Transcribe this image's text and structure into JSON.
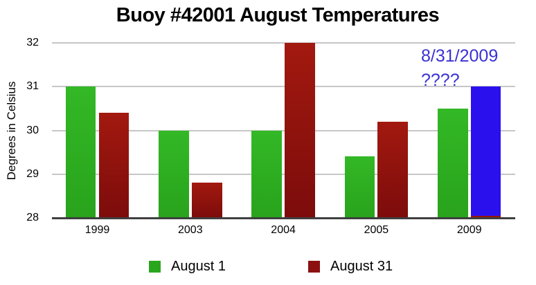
{
  "title": "Buoy #42001 August Temperatures",
  "y_axis_label": "Degrees in Celsius",
  "annotation": {
    "line1": "8/31/2009",
    "line2": "????"
  },
  "legend": {
    "items": [
      {
        "label": "August 1",
        "color": "#2aa61e"
      },
      {
        "label": "August 31",
        "color": "#8c1111"
      }
    ]
  },
  "colors": {
    "august1_bar": "#2eb022",
    "august31_bar_top": "#a2190f",
    "august31_bar_bottom": "#7c0c0b",
    "forecast_bar": "#2b10ee",
    "annotation_text": "#3a31d4",
    "gridline": "#c6c6c6",
    "axis_line": "#3f3f3f"
  },
  "chart_data": {
    "type": "bar",
    "title": "Buoy #42001 August Temperatures",
    "ylabel": "Degrees in Celsius",
    "ylim": [
      28,
      32
    ],
    "yticks": [
      28,
      29,
      30,
      31,
      32
    ],
    "grid": true,
    "legend_position": "bottom",
    "categories": [
      "1999",
      "2003",
      "2004",
      "2005",
      "2009"
    ],
    "series": [
      {
        "name": "August 1",
        "color": "#2eb022",
        "values": [
          31.0,
          30.0,
          30.0,
          29.4,
          30.5
        ]
      },
      {
        "name": "August 31",
        "color": "#8c1111",
        "values": [
          30.4,
          28.8,
          32.0,
          30.2,
          28.05
        ]
      }
    ],
    "overlay_bar": {
      "category": "2009",
      "category_index": 4,
      "value": 31.0,
      "color": "#2b10ee",
      "annotation": "8/31/2009 ????"
    },
    "note": "The 2009 August 31 bar is almost entirely covered by a blue bar (topping at 31.0) annotated '8/31/2009 ????'; only a thin dark-red sliver (~28.05) remains visible just above the axis."
  }
}
